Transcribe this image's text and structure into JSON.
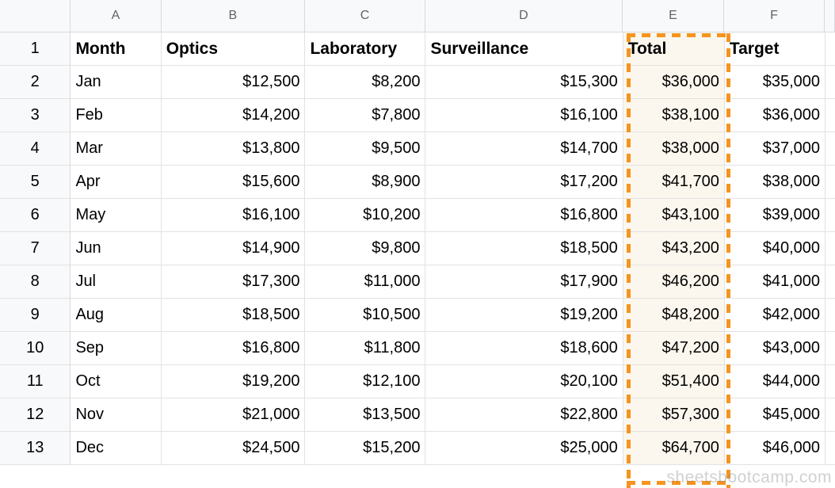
{
  "sheet": {
    "column_letters": [
      "A",
      "B",
      "C",
      "D",
      "E",
      "F"
    ],
    "corner_label": "",
    "header_row": {
      "row_number": "1",
      "month": "Month",
      "optics": "Optics",
      "laboratory": "Laboratory",
      "surveillance": "Surveillance",
      "total": "Total",
      "target": "Target"
    },
    "rows": [
      {
        "row_number": "2",
        "month": "Jan",
        "optics": "$12,500",
        "laboratory": "$8,200",
        "surveillance": "$15,300",
        "total": "$36,000",
        "target": "$35,000"
      },
      {
        "row_number": "3",
        "month": "Feb",
        "optics": "$14,200",
        "laboratory": "$7,800",
        "surveillance": "$16,100",
        "total": "$38,100",
        "target": "$36,000"
      },
      {
        "row_number": "4",
        "month": "Mar",
        "optics": "$13,800",
        "laboratory": "$9,500",
        "surveillance": "$14,700",
        "total": "$38,000",
        "target": "$37,000"
      },
      {
        "row_number": "5",
        "month": "Apr",
        "optics": "$15,600",
        "laboratory": "$8,900",
        "surveillance": "$17,200",
        "total": "$41,700",
        "target": "$38,000"
      },
      {
        "row_number": "6",
        "month": "May",
        "optics": "$16,100",
        "laboratory": "$10,200",
        "surveillance": "$16,800",
        "total": "$43,100",
        "target": "$39,000"
      },
      {
        "row_number": "7",
        "month": "Jun",
        "optics": "$14,900",
        "laboratory": "$9,800",
        "surveillance": "$18,500",
        "total": "$43,200",
        "target": "$40,000"
      },
      {
        "row_number": "8",
        "month": "Jul",
        "optics": "$17,300",
        "laboratory": "$11,000",
        "surveillance": "$17,900",
        "total": "$46,200",
        "target": "$41,000"
      },
      {
        "row_number": "9",
        "month": "Aug",
        "optics": "$18,500",
        "laboratory": "$10,500",
        "surveillance": "$19,200",
        "total": "$48,200",
        "target": "$42,000"
      },
      {
        "row_number": "10",
        "month": "Sep",
        "optics": "$16,800",
        "laboratory": "$11,800",
        "surveillance": "$18,600",
        "total": "$47,200",
        "target": "$43,000"
      },
      {
        "row_number": "11",
        "month": "Oct",
        "optics": "$19,200",
        "laboratory": "$12,100",
        "surveillance": "$20,100",
        "total": "$51,400",
        "target": "$44,000"
      },
      {
        "row_number": "12",
        "month": "Nov",
        "optics": "$21,000",
        "laboratory": "$13,500",
        "surveillance": "$22,800",
        "total": "$57,300",
        "target": "$45,000"
      },
      {
        "row_number": "13",
        "month": "Dec",
        "optics": "$24,500",
        "laboratory": "$15,200",
        "surveillance": "$25,000",
        "total": "$64,700",
        "target": "$46,000"
      }
    ],
    "highlighted_range": {
      "column_letter": "E",
      "column_label": "Total",
      "border_color": "#f5941f",
      "fill_color": "#fcf7ee"
    },
    "colors": {
      "gridline": "#e2e2e2",
      "header_background": "#f8f9fa",
      "header_text": "#5f6368",
      "cell_text": "#000000"
    },
    "watermark": "sheetsbootcamp.com"
  }
}
